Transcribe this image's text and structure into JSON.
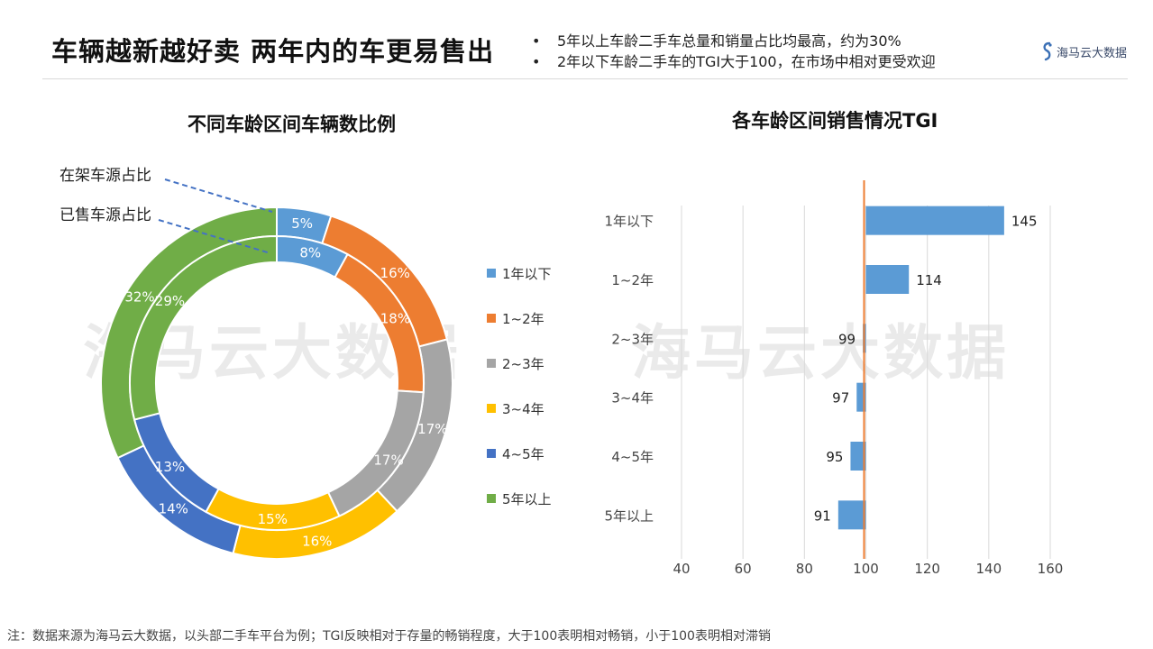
{
  "header": {
    "title": "车辆越新越好卖 两年内的车更易售出",
    "bullets": [
      "5年以上车龄二手车总量和销量占比均最高，约为30%",
      "2年以下车龄二手车的TGI大于100，在市场中相对更受欢迎"
    ],
    "logo_text": "海马云大数据"
  },
  "watermark": "海马云大数据",
  "footnote": "注：数据来源为海马云大数据，以头部二手车平台为例；TGI反映相对于存量的畅销程度，大于100表明相对畅销，小于100表明相对滞销",
  "chart_data": [
    {
      "type": "donut",
      "title": "不同车龄区间车辆数比例",
      "categories": [
        "1年以下",
        "1~2年",
        "2~3年",
        "3~4年",
        "4~5年",
        "5年以上"
      ],
      "colors": [
        "#5b9bd5",
        "#ed7d31",
        "#a5a5a5",
        "#ffc000",
        "#4472c4",
        "#70ad47"
      ],
      "series": [
        {
          "name": "在架车源占比",
          "ring": "outer",
          "values": [
            5,
            16,
            17,
            16,
            14,
            32
          ],
          "labels": [
            "5%",
            "16%",
            "17%",
            "16%",
            "14%",
            "32%"
          ]
        },
        {
          "name": "已售车源占比",
          "ring": "inner",
          "values": [
            8,
            18,
            17,
            15,
            13,
            29
          ],
          "labels": [
            "8%",
            "18%",
            "17%",
            "15%",
            "13%",
            "29%"
          ]
        }
      ],
      "legend_position": "right"
    },
    {
      "type": "bar",
      "orientation": "horizontal",
      "title": "各车龄区间销售情况TGI",
      "categories": [
        "1年以下",
        "1~2年",
        "2~3年",
        "3~4年",
        "4~5年",
        "5年以上"
      ],
      "values": [
        145,
        114,
        99,
        97,
        95,
        91
      ],
      "baseline": 100,
      "xlim": [
        40,
        160
      ],
      "xticks": [
        "40",
        "60",
        "80",
        "100",
        "120",
        "140",
        "160"
      ],
      "bar_color": "#5b9bd5",
      "reference_line_color": "#ed7d31",
      "grid": true
    }
  ]
}
